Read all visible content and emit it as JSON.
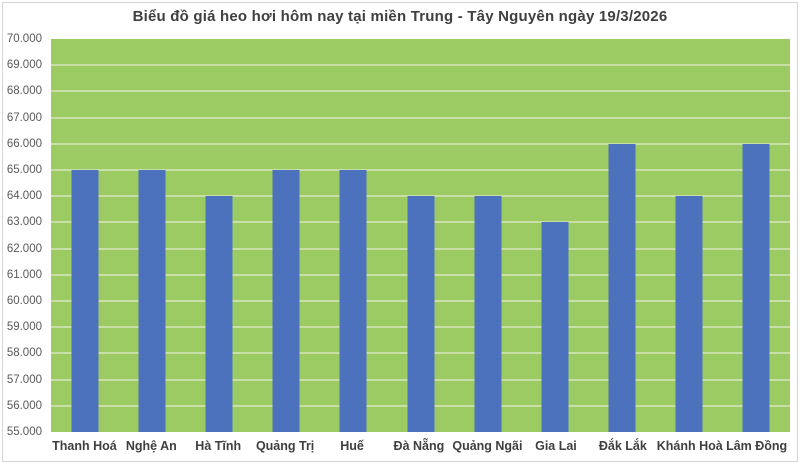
{
  "title": "Biểu đồ giá heo hơi hôm nay tại miền Trung - Tây Nguyên ngày 19/3/2026",
  "colors": {
    "plot_bg": "#9CCB63",
    "bar": "#4D72BD",
    "gridline": "#CDE1AE",
    "title_text": "#3F3F3F",
    "axis_text": "#595959",
    "category_text": "#3F3F3F",
    "frame": "#D6D6D6"
  },
  "chart_data": {
    "type": "bar",
    "title": "Biểu đồ giá heo hơi hôm nay tại miền Trung - Tây Nguyên ngày 19/3/2026",
    "categories": [
      "Thanh Hoá",
      "Nghệ An",
      "Hà Tĩnh",
      "Quảng Trị",
      "Huế",
      "Đà Nẵng",
      "Quảng Ngãi",
      "Gia Lai",
      "Đắk Lắk",
      "Khánh Hoà",
      "Lâm Đồng"
    ],
    "values": [
      65000,
      65000,
      64000,
      65000,
      65000,
      64000,
      64000,
      63000,
      66000,
      64000,
      66000
    ],
    "xlabel": "",
    "ylabel": "",
    "ylim": [
      55000,
      70000
    ],
    "ytick_interval": 1000,
    "ytick_labels": [
      "70.000",
      "69.000",
      "68.000",
      "67.000",
      "66.000",
      "65.000",
      "64.000",
      "63.000",
      "62.000",
      "61.000",
      "60.000",
      "59.000",
      "58.000",
      "57.000",
      "56.000",
      "55.000"
    ],
    "grid": true,
    "legend_position": "none",
    "plot_background": "#9CCB63",
    "bar_color": "#4D72BD"
  }
}
